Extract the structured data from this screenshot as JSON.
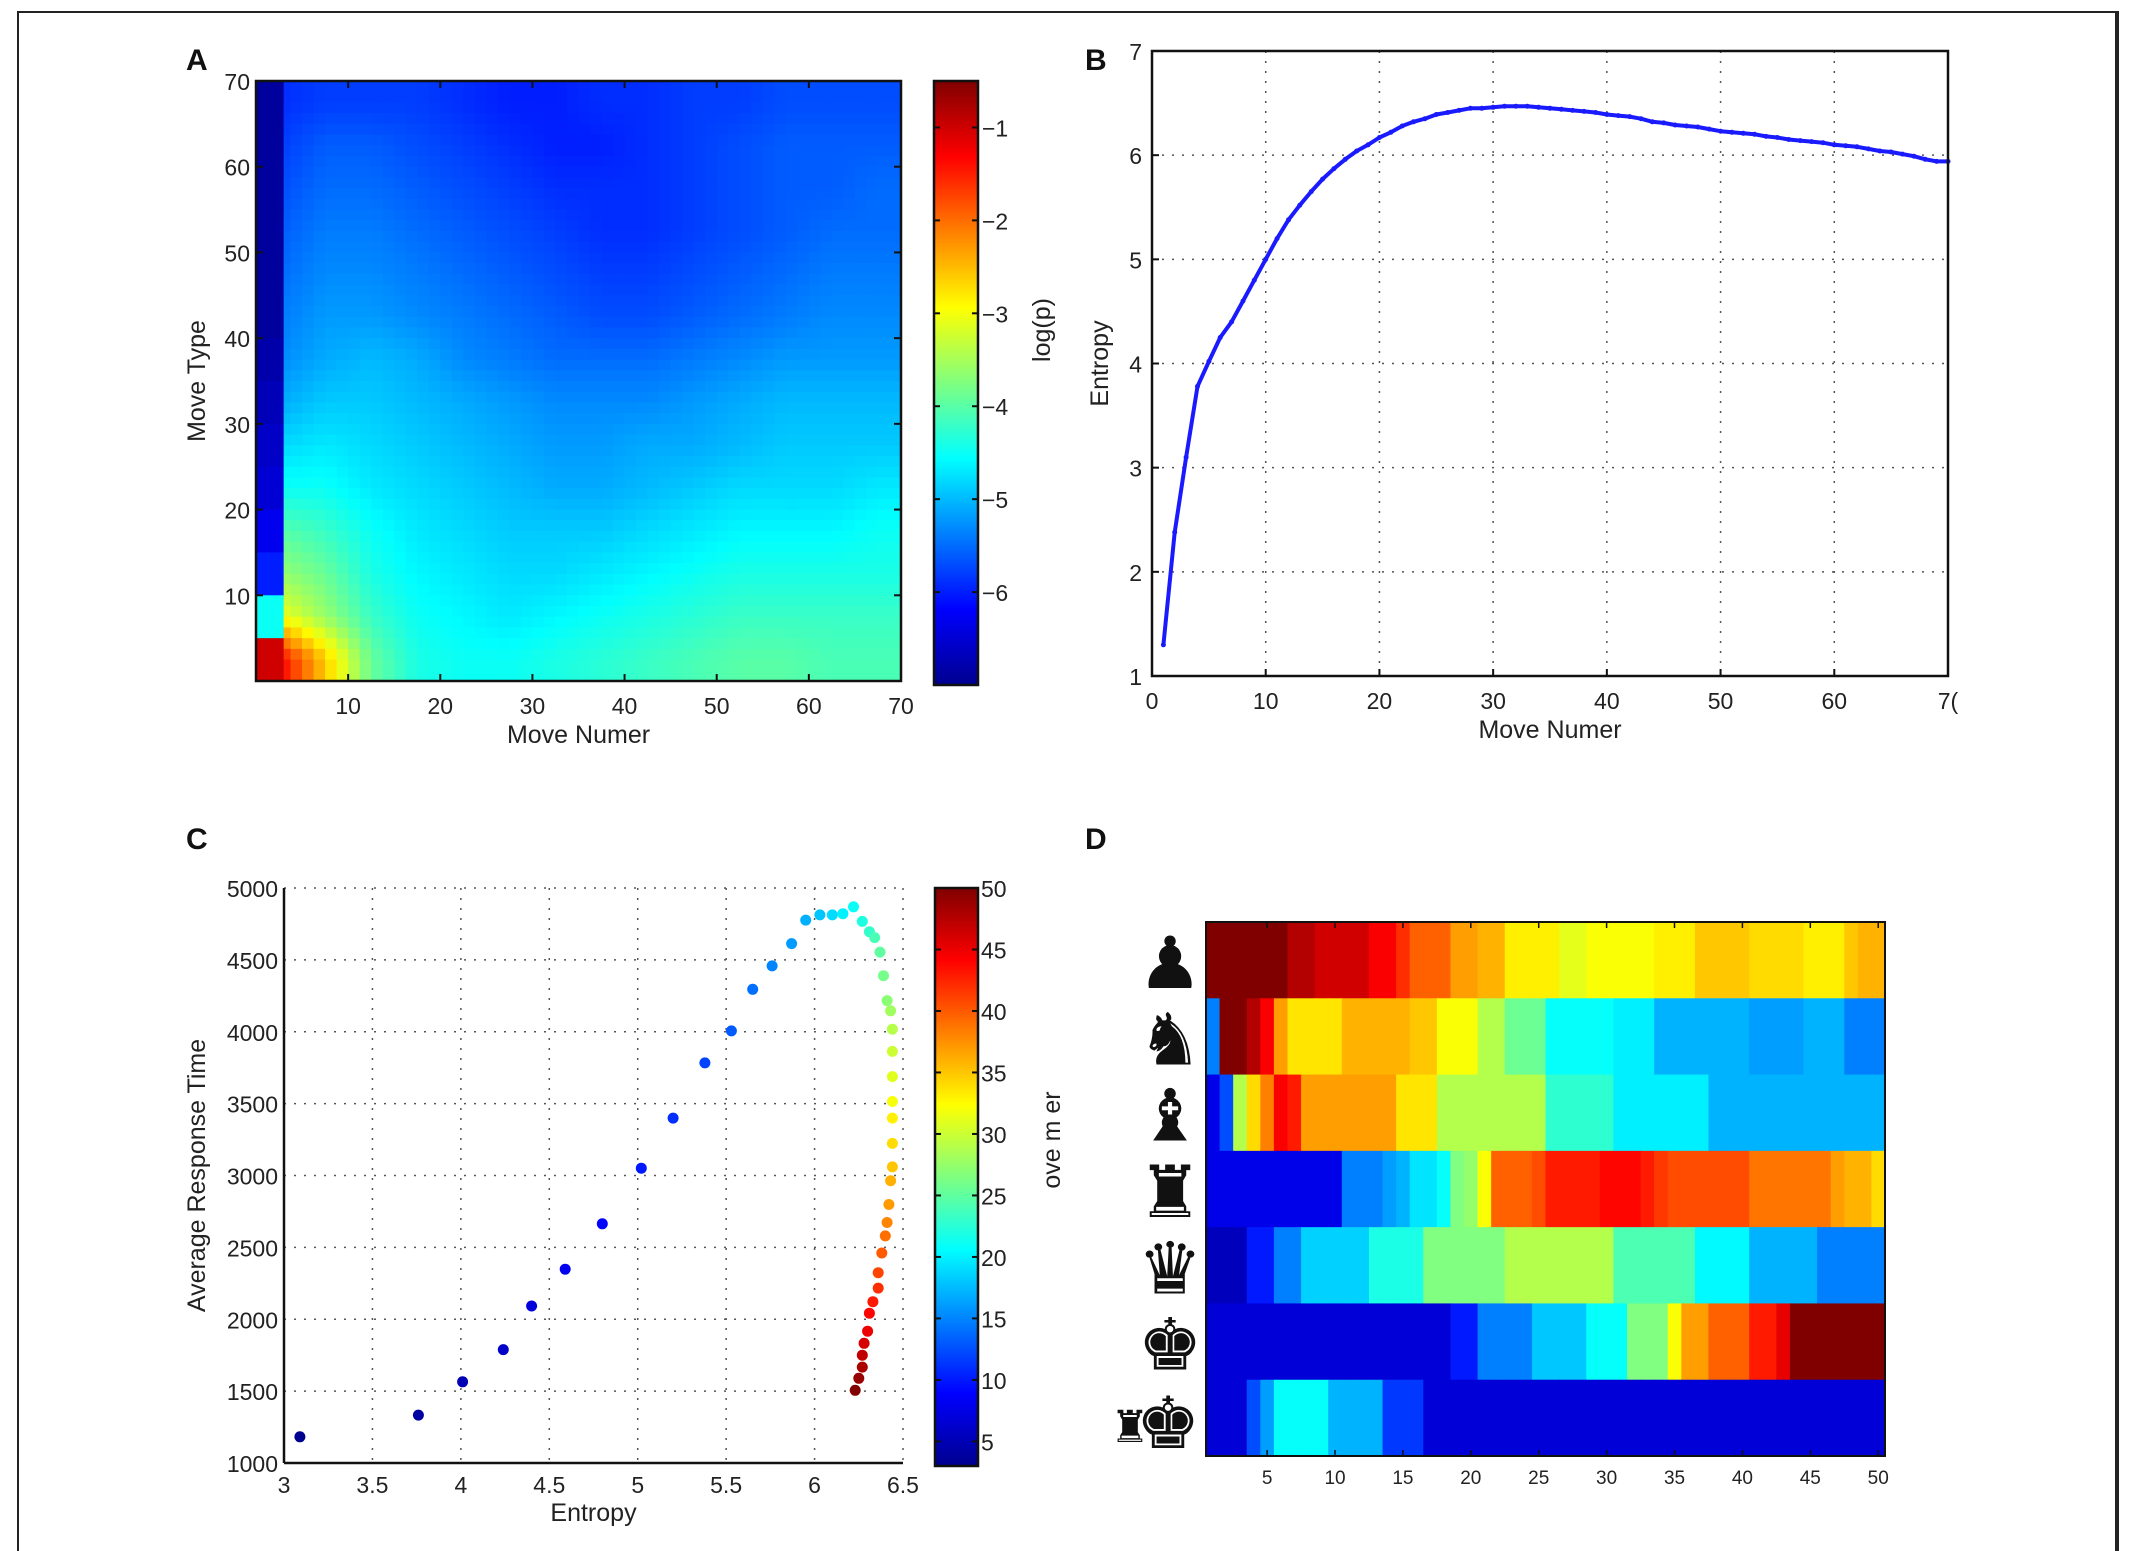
{
  "panels": {
    "A": {
      "label": "A"
    },
    "B": {
      "label": "B"
    },
    "C": {
      "label": "C"
    },
    "D": {
      "label": "D"
    }
  },
  "chart_data": [
    {
      "id": "A",
      "type": "heatmap",
      "title": "",
      "xlabel": "Move Numer",
      "ylabel": "Move Type",
      "colorbar_label": "log(p)",
      "colormap": "jet",
      "xlim": [
        0,
        70
      ],
      "ylim": [
        0,
        70
      ],
      "xticks": [
        10,
        20,
        30,
        40,
        50,
        60,
        70
      ],
      "yticks": [
        10,
        20,
        30,
        40,
        50,
        60,
        70
      ],
      "colorbar_range": [
        -7,
        -0.5
      ],
      "colorbar_ticks": [
        -1,
        -2,
        -3,
        -4,
        -5,
        -6
      ],
      "bin_size": 5,
      "grid_note": "rows from move type 70 (top) to 0 (bottom); columns move number 0..70; values are log(p)",
      "edge_column_values": [
        -6.9,
        -6.9,
        -6.9,
        -6.9,
        -6.9,
        -6.9,
        -6.8,
        -6.7,
        -6.6,
        -6.5,
        -6.3,
        -6.0,
        -4.5,
        -1.0
      ],
      "values": [
        [
          -5.9,
          -5.8,
          -5.8,
          -5.8,
          -5.9,
          -6.0,
          -6.0,
          -5.9,
          -5.9,
          -5.8,
          -5.8,
          -5.7,
          -5.7,
          -5.7
        ],
        [
          -5.8,
          -5.6,
          -5.6,
          -5.7,
          -5.8,
          -5.9,
          -6.0,
          -6.0,
          -5.9,
          -5.8,
          -5.7,
          -5.6,
          -5.6,
          -5.6
        ],
        [
          -5.7,
          -5.5,
          -5.5,
          -5.6,
          -5.7,
          -5.8,
          -5.9,
          -5.9,
          -5.9,
          -5.8,
          -5.7,
          -5.6,
          -5.6,
          -5.5
        ],
        [
          -5.6,
          -5.4,
          -5.4,
          -5.5,
          -5.6,
          -5.7,
          -5.8,
          -5.9,
          -5.9,
          -5.8,
          -5.7,
          -5.6,
          -5.5,
          -5.5
        ],
        [
          -5.5,
          -5.3,
          -5.3,
          -5.4,
          -5.5,
          -5.6,
          -5.7,
          -5.8,
          -5.8,
          -5.7,
          -5.6,
          -5.5,
          -5.4,
          -5.4
        ],
        [
          -5.4,
          -5.2,
          -5.2,
          -5.3,
          -5.4,
          -5.5,
          -5.6,
          -5.7,
          -5.7,
          -5.6,
          -5.5,
          -5.4,
          -5.3,
          -5.3
        ],
        [
          -5.3,
          -5.1,
          -5.0,
          -5.1,
          -5.3,
          -5.4,
          -5.5,
          -5.5,
          -5.5,
          -5.4,
          -5.3,
          -5.2,
          -5.2,
          -5.2
        ],
        [
          -5.1,
          -4.9,
          -4.9,
          -5.0,
          -5.1,
          -5.2,
          -5.3,
          -5.3,
          -5.3,
          -5.2,
          -5.1,
          -5.0,
          -5.0,
          -5.0
        ],
        [
          -4.8,
          -4.7,
          -4.8,
          -4.9,
          -5.0,
          -5.1,
          -5.2,
          -5.2,
          -5.1,
          -5.1,
          -5.0,
          -4.9,
          -4.9,
          -4.9
        ],
        [
          -4.5,
          -4.5,
          -4.7,
          -4.8,
          -4.9,
          -5.0,
          -5.1,
          -5.1,
          -5.0,
          -4.9,
          -4.8,
          -4.8,
          -4.8,
          -4.7
        ],
        [
          -4.0,
          -4.2,
          -4.5,
          -4.7,
          -4.8,
          -4.9,
          -4.9,
          -4.9,
          -4.8,
          -4.7,
          -4.6,
          -4.6,
          -4.6,
          -4.5
        ],
        [
          -3.6,
          -3.9,
          -4.4,
          -4.6,
          -4.7,
          -4.8,
          -4.8,
          -4.7,
          -4.6,
          -4.5,
          -4.4,
          -4.4,
          -4.4,
          -4.4
        ],
        [
          -3.0,
          -3.6,
          -4.2,
          -4.5,
          -4.6,
          -4.7,
          -4.6,
          -4.5,
          -4.4,
          -4.3,
          -4.2,
          -4.2,
          -4.2,
          -4.2
        ],
        [
          -1.3,
          -2.6,
          -3.9,
          -4.4,
          -4.5,
          -4.5,
          -4.4,
          -4.3,
          -4.2,
          -4.1,
          -4.0,
          -4.0,
          -4.1,
          -4.1
        ]
      ]
    },
    {
      "id": "B",
      "type": "line",
      "title": "",
      "xlabel": "Move Numer",
      "ylabel": "Entropy",
      "xlim": [
        0,
        70
      ],
      "ylim": [
        1,
        7
      ],
      "xticks": [
        0,
        10,
        20,
        30,
        40,
        50,
        60,
        70
      ],
      "xtick_labels": [
        "0",
        "10",
        "20",
        "30",
        "40",
        "50",
        "60",
        "7("
      ],
      "yticks": [
        1,
        2,
        3,
        4,
        5,
        6,
        7
      ],
      "grid": true,
      "series": [
        {
          "name": "Entropy",
          "color": "#1a1aff",
          "x": [
            1,
            2,
            3,
            4,
            5,
            6,
            7,
            8,
            9,
            10,
            11,
            12,
            13,
            14,
            15,
            16,
            17,
            18,
            19,
            20,
            21,
            22,
            23,
            24,
            25,
            26,
            27,
            28,
            29,
            30,
            31,
            32,
            33,
            34,
            35,
            36,
            37,
            38,
            39,
            40,
            41,
            42,
            43,
            44,
            45,
            46,
            47,
            48,
            49,
            50,
            51,
            52,
            53,
            54,
            55,
            56,
            57,
            58,
            59,
            60,
            61,
            62,
            63,
            64,
            65,
            66,
            67,
            68,
            69,
            70
          ],
          "y": [
            1.3,
            2.38,
            3.1,
            3.78,
            4.02,
            4.25,
            4.4,
            4.6,
            4.8,
            5.0,
            5.2,
            5.38,
            5.52,
            5.65,
            5.77,
            5.87,
            5.96,
            6.04,
            6.1,
            6.17,
            6.22,
            6.28,
            6.32,
            6.35,
            6.39,
            6.41,
            6.43,
            6.45,
            6.45,
            6.46,
            6.47,
            6.47,
            6.47,
            6.46,
            6.45,
            6.44,
            6.43,
            6.42,
            6.41,
            6.39,
            6.38,
            6.37,
            6.35,
            6.32,
            6.31,
            6.29,
            6.28,
            6.27,
            6.25,
            6.23,
            6.22,
            6.21,
            6.2,
            6.18,
            6.17,
            6.15,
            6.14,
            6.13,
            6.12,
            6.1,
            6.09,
            6.08,
            6.06,
            6.04,
            6.03,
            6.01,
            5.99,
            5.96,
            5.94,
            5.94
          ]
        }
      ]
    },
    {
      "id": "C",
      "type": "scatter",
      "title": "",
      "xlabel": "Entropy",
      "ylabel": "Average Response Time",
      "colorbar_label": "ove    m  er",
      "colormap": "jet",
      "xlim": [
        3,
        6.5
      ],
      "ylim": [
        1000,
        5000
      ],
      "xticks": [
        3,
        3.5,
        4,
        4.5,
        5,
        5.5,
        6,
        6.5
      ],
      "yticks": [
        1000,
        1500,
        2000,
        2500,
        3000,
        3500,
        4000,
        4500,
        5000
      ],
      "colorbar_range": [
        3,
        50
      ],
      "colorbar_ticks": [
        5,
        10,
        15,
        20,
        25,
        30,
        35,
        40,
        45,
        50
      ],
      "grid": true,
      "points": {
        "move": [
          3,
          4,
          5,
          6,
          7,
          8,
          9,
          10,
          11,
          12,
          13,
          14,
          15,
          16,
          17,
          18,
          19,
          20,
          21,
          22,
          23,
          24,
          25,
          26,
          27,
          28,
          29,
          30,
          31,
          32,
          33,
          34,
          35,
          36,
          37,
          38,
          39,
          40,
          41,
          42,
          43,
          44,
          45,
          46,
          47,
          48,
          49,
          50
        ],
        "x": [
          3.09,
          3.76,
          4.01,
          4.24,
          4.4,
          4.59,
          4.8,
          5.02,
          5.2,
          5.38,
          5.53,
          5.65,
          5.76,
          5.87,
          5.95,
          6.03,
          6.1,
          6.16,
          6.22,
          6.27,
          6.31,
          6.34,
          6.37,
          6.39,
          6.41,
          6.43,
          6.44,
          6.44,
          6.44,
          6.44,
          6.44,
          6.44,
          6.44,
          6.43,
          6.42,
          6.41,
          6.4,
          6.38,
          6.36,
          6.36,
          6.33,
          6.31,
          6.3,
          6.28,
          6.27,
          6.27,
          6.25,
          6.23
        ],
        "y": [
          1182,
          1333,
          1565,
          1789,
          2092,
          2348,
          2664,
          3051,
          3399,
          3783,
          4006,
          4295,
          4458,
          4613,
          4777,
          4813,
          4813,
          4821,
          4869,
          4768,
          4696,
          4655,
          4554,
          4390,
          4217,
          4146,
          4018,
          3863,
          3688,
          3515,
          3399,
          3223,
          3060,
          2964,
          2798,
          2673,
          2580,
          2461,
          2324,
          2217,
          2122,
          2042,
          1917,
          1833,
          1750,
          1667,
          1589,
          1506
        ]
      }
    },
    {
      "id": "D",
      "type": "heatmap",
      "title": "",
      "xlabel": "",
      "ylabel": "",
      "colormap": "jet",
      "xlim": [
        0.5,
        50.5
      ],
      "xticks": [
        5,
        10,
        15,
        20,
        25,
        30,
        35,
        40,
        45,
        50
      ],
      "value_scale": "normalized 0-1 (colormap position)",
      "rows": [
        {
          "piece": "pawn",
          "values": [
            1,
            1,
            1,
            1,
            1,
            1,
            0.95,
            0.95,
            0.92,
            0.92,
            0.92,
            0.92,
            0.88,
            0.88,
            0.83,
            0.78,
            0.78,
            0.78,
            0.72,
            0.72,
            0.7,
            0.7,
            0.64,
            0.64,
            0.64,
            0.64,
            0.6,
            0.6,
            0.62,
            0.62,
            0.62,
            0.62,
            0.62,
            0.64,
            0.64,
            0.64,
            0.68,
            0.68,
            0.68,
            0.68,
            0.66,
            0.66,
            0.66,
            0.66,
            0.64,
            0.64,
            0.64,
            0.68,
            0.7,
            0.7
          ]
        },
        {
          "piece": "knight",
          "values": [
            0.25,
            1,
            1,
            0.95,
            0.88,
            0.72,
            0.65,
            0.65,
            0.65,
            0.65,
            0.7,
            0.7,
            0.7,
            0.7,
            0.7,
            0.68,
            0.68,
            0.62,
            0.62,
            0.62,
            0.55,
            0.55,
            0.48,
            0.48,
            0.48,
            0.38,
            0.38,
            0.38,
            0.38,
            0.38,
            0.36,
            0.36,
            0.36,
            0.3,
            0.3,
            0.3,
            0.3,
            0.3,
            0.3,
            0.3,
            0.28,
            0.28,
            0.28,
            0.28,
            0.3,
            0.3,
            0.3,
            0.25,
            0.25,
            0.25
          ]
        },
        {
          "piece": "bishop",
          "values": [
            0.1,
            0.2,
            0.55,
            0.66,
            0.75,
            0.88,
            0.85,
            0.72,
            0.72,
            0.72,
            0.72,
            0.72,
            0.72,
            0.72,
            0.65,
            0.65,
            0.65,
            0.55,
            0.55,
            0.55,
            0.55,
            0.55,
            0.55,
            0.55,
            0.55,
            0.42,
            0.42,
            0.42,
            0.42,
            0.42,
            0.36,
            0.36,
            0.36,
            0.36,
            0.36,
            0.36,
            0.36,
            0.3,
            0.3,
            0.3,
            0.3,
            0.3,
            0.3,
            0.3,
            0.3,
            0.3,
            0.3,
            0.3,
            0.3,
            0.3
          ]
        },
        {
          "piece": "rook",
          "values": [
            0.1,
            0.1,
            0.1,
            0.1,
            0.1,
            0.1,
            0.1,
            0.1,
            0.1,
            0.1,
            0.25,
            0.25,
            0.25,
            0.28,
            0.3,
            0.35,
            0.35,
            0.38,
            0.5,
            0.52,
            0.62,
            0.78,
            0.78,
            0.78,
            0.8,
            0.85,
            0.85,
            0.85,
            0.85,
            0.87,
            0.87,
            0.87,
            0.85,
            0.82,
            0.8,
            0.8,
            0.8,
            0.8,
            0.8,
            0.8,
            0.76,
            0.76,
            0.76,
            0.76,
            0.76,
            0.76,
            0.72,
            0.7,
            0.7,
            0.66
          ]
        },
        {
          "piece": "queen",
          "values": [
            0.05,
            0.05,
            0.05,
            0.15,
            0.15,
            0.25,
            0.25,
            0.33,
            0.33,
            0.33,
            0.33,
            0.33,
            0.4,
            0.4,
            0.4,
            0.4,
            0.5,
            0.5,
            0.5,
            0.5,
            0.5,
            0.5,
            0.55,
            0.55,
            0.55,
            0.55,
            0.55,
            0.55,
            0.55,
            0.55,
            0.45,
            0.45,
            0.45,
            0.45,
            0.45,
            0.45,
            0.37,
            0.37,
            0.37,
            0.37,
            0.3,
            0.3,
            0.3,
            0.3,
            0.3,
            0.25,
            0.25,
            0.25,
            0.25,
            0.25
          ]
        },
        {
          "piece": "king",
          "values": [
            0.08,
            0.08,
            0.08,
            0.08,
            0.08,
            0.08,
            0.08,
            0.08,
            0.08,
            0.08,
            0.08,
            0.08,
            0.08,
            0.08,
            0.08,
            0.08,
            0.08,
            0.08,
            0.15,
            0.15,
            0.25,
            0.25,
            0.25,
            0.25,
            0.32,
            0.32,
            0.32,
            0.32,
            0.38,
            0.38,
            0.38,
            0.5,
            0.5,
            0.5,
            0.62,
            0.72,
            0.72,
            0.78,
            0.78,
            0.78,
            0.85,
            0.85,
            0.9,
            1,
            1,
            1,
            1,
            1,
            1,
            1
          ]
        },
        {
          "piece": "castling",
          "values": [
            0.08,
            0.08,
            0.08,
            0.2,
            0.28,
            0.38,
            0.38,
            0.38,
            0.38,
            0.3,
            0.3,
            0.3,
            0.3,
            0.18,
            0.18,
            0.18,
            0.08,
            0.08,
            0.08,
            0.08,
            0.08,
            0.08,
            0.08,
            0.08,
            0.08,
            0.08,
            0.08,
            0.08,
            0.08,
            0.08,
            0.08,
            0.08,
            0.08,
            0.08,
            0.08,
            0.08,
            0.08,
            0.08,
            0.08,
            0.08,
            0.08,
            0.08,
            0.08,
            0.08,
            0.08,
            0.08,
            0.08,
            0.08,
            0.08,
            0.08
          ]
        }
      ]
    }
  ]
}
